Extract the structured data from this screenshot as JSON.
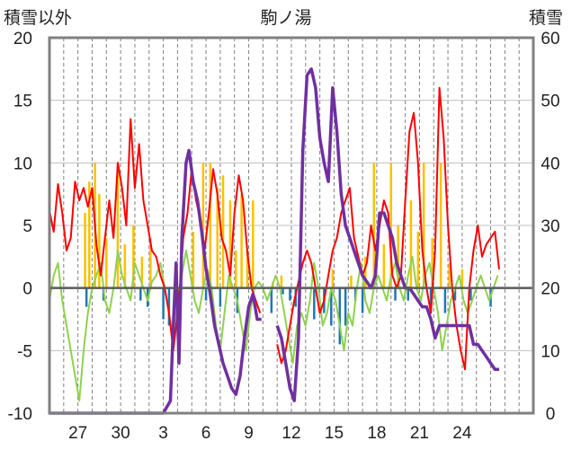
{
  "chart_data": {
    "type": "line",
    "title": "駒ノ湯",
    "ylabel_left": "積雪以外",
    "ylabel_right": "積雪",
    "ylim_left": [
      -10,
      20
    ],
    "ylim_right": [
      0,
      60
    ],
    "yticks_left": [
      "-10",
      "-5",
      "0",
      "5",
      "10",
      "15",
      "20"
    ],
    "yticks_right": [
      "0",
      "10",
      "20",
      "30",
      "40",
      "50",
      "60"
    ],
    "xlim": [
      25,
      59
    ],
    "xticks": [
      {
        "pos": 27,
        "label": "27"
      },
      {
        "pos": 30,
        "label": "30"
      },
      {
        "pos": 33,
        "label": "3"
      },
      {
        "pos": 36,
        "label": "6"
      },
      {
        "pos": 39,
        "label": "9"
      },
      {
        "pos": 42,
        "label": "12"
      },
      {
        "pos": 45,
        "label": "15"
      },
      {
        "pos": 48,
        "label": "18"
      },
      {
        "pos": 51,
        "label": "21"
      },
      {
        "pos": 54,
        "label": "24"
      }
    ],
    "grid": true,
    "colors": {
      "max_temp": "#ff0000",
      "min_temp": "#8fd14f",
      "snowfall_bar": "#ffc000",
      "negative_bar": "#1f77b4",
      "snow_depth": "#7030a0"
    },
    "series": [
      {
        "key": "max_temp",
        "axis": "left",
        "x": [
          25.0,
          25.3,
          25.6,
          25.9,
          26.2,
          26.5,
          26.8,
          27.1,
          27.4,
          27.7,
          28.0,
          28.3,
          28.6,
          28.9,
          29.2,
          29.5,
          29.8,
          30.1,
          30.4,
          30.7,
          31.0,
          31.3,
          31.6,
          31.9,
          32.2,
          32.5,
          32.8,
          33.1,
          33.4,
          33.7,
          34.0,
          34.2,
          34.4,
          34.7,
          35.0,
          35.3,
          35.6,
          35.9,
          36.2,
          36.5,
          36.8,
          37.1,
          37.4,
          37.7,
          38.0,
          38.3,
          38.6,
          38.9,
          39.2,
          39.5,
          39.8
        ],
        "values": [
          6.2,
          4.5,
          8.3,
          6.0,
          3.0,
          4.0,
          8.5,
          7.0,
          8.0,
          6.5,
          8.0,
          3.5,
          1.0,
          4.0,
          7.0,
          4.0,
          10.0,
          8.0,
          5.0,
          13.5,
          8.0,
          11.5,
          7.0,
          5.0,
          3.0,
          2.5,
          1.0,
          0.0,
          -2.0,
          -5.0,
          -2.0,
          0.5,
          4.0,
          6.0,
          9.5,
          7.0,
          5.5,
          3.0,
          6.0,
          9.5,
          7.5,
          4.0,
          3.0,
          1.0,
          6.0,
          9.0,
          7.0,
          3.0,
          0.0,
          -1.0,
          -2.0
        ]
      },
      {
        "key": "max_temp",
        "axis": "left",
        "x": [
          41.0,
          41.3,
          41.6,
          41.9,
          42.2,
          42.5,
          42.8,
          43.1,
          43.4,
          43.7,
          44.0,
          44.3,
          44.6,
          44.9,
          45.2,
          45.5,
          45.8,
          46.1,
          46.4,
          46.7,
          47.0,
          47.3,
          47.6,
          47.9,
          48.2,
          48.5,
          48.8,
          49.1,
          49.4,
          49.7,
          50.0,
          50.3,
          50.6,
          50.9,
          51.2,
          51.5,
          51.8,
          52.1,
          52.4,
          52.7,
          53.0,
          53.3,
          53.6,
          53.9,
          54.2,
          54.5,
          54.8,
          55.1,
          55.4,
          55.7,
          56.0,
          56.3,
          56.6
        ],
        "values": [
          -4.5,
          -6.0,
          -5.0,
          -3.0,
          -1.0,
          0.5,
          2.0,
          3.0,
          2.0,
          0.0,
          -2.0,
          -1.0,
          1.0,
          3.0,
          4.0,
          6.0,
          7.0,
          8.0,
          4.0,
          2.5,
          1.0,
          2.0,
          5.0,
          3.0,
          5.0,
          7.0,
          6.0,
          1.0,
          0.0,
          1.0,
          7.0,
          12.5,
          14.0,
          10.0,
          3.0,
          0.0,
          -2.0,
          3.0,
          16.0,
          12.0,
          5.0,
          0.0,
          -3.0,
          -5.0,
          -6.5,
          0.0,
          3.0,
          5.0,
          2.5,
          3.5,
          4.0,
          4.5,
          1.5
        ]
      },
      {
        "key": "min_temp",
        "axis": "left",
        "x": [
          25.0,
          25.3,
          25.6,
          25.9,
          26.2,
          26.5,
          26.8,
          27.1,
          27.4,
          27.7,
          28.0,
          28.3,
          28.6,
          28.9,
          29.2,
          29.5,
          29.8,
          30.1,
          30.4,
          30.7,
          31.0,
          31.3,
          31.6,
          31.9,
          32.2,
          32.5,
          32.8,
          33.1,
          33.4,
          33.7,
          34.0,
          34.3,
          34.6,
          34.9,
          35.2,
          35.5,
          35.8,
          36.1,
          36.4,
          36.7,
          37.0,
          37.3,
          37.6,
          37.9,
          38.2,
          38.5,
          38.8,
          39.1,
          39.4,
          39.7,
          40.0,
          40.3,
          40.6,
          40.9,
          41.2,
          41.5,
          41.8,
          42.1,
          42.4,
          42.7,
          43.0,
          43.3,
          43.6,
          43.9,
          44.2,
          44.5,
          44.8,
          45.1,
          45.4,
          45.7,
          46.0,
          46.3,
          46.6,
          46.9,
          47.2,
          47.5,
          47.8,
          48.1,
          48.4,
          48.7,
          49.0,
          49.3,
          49.6,
          49.9,
          50.2,
          50.5,
          50.8,
          51.1,
          51.4,
          51.7,
          52.0,
          52.3,
          52.6,
          52.9,
          53.2,
          53.5,
          53.8,
          54.1,
          54.4,
          54.7,
          55.0,
          55.3,
          55.6,
          55.9,
          56.2,
          56.5
        ],
        "values": [
          -1.0,
          1.0,
          2.0,
          -1.0,
          -3.0,
          -5.0,
          -7.0,
          -9.0,
          -5.0,
          -2.0,
          0.0,
          1.0,
          2.0,
          -1.0,
          -2.0,
          0.0,
          3.0,
          1.0,
          0.0,
          -1.0,
          2.0,
          1.0,
          0.0,
          -1.0,
          0.5,
          1.0,
          2.0,
          0.0,
          -2.0,
          -4.0,
          -1.0,
          1.0,
          3.0,
          1.0,
          -1.0,
          -2.0,
          0.0,
          1.5,
          0.0,
          -3.0,
          -5.0,
          -2.0,
          1.0,
          0.0,
          -1.0,
          -3.0,
          -5.0,
          -2.0,
          0.0,
          0.5,
          0.0,
          -1.0,
          0.0,
          1.0,
          0.0,
          -2.0,
          -4.0,
          -6.0,
          -3.0,
          -2.0,
          -3.0,
          -1.0,
          2.0,
          0.0,
          -3.0,
          -2.0,
          0.0,
          -1.0,
          -3.0,
          -5.0,
          -2.0,
          -3.0,
          0.0,
          2.0,
          -1.0,
          -2.0,
          0.0,
          1.0,
          0.0,
          -1.0,
          1.0,
          2.0,
          0.0,
          -1.0,
          1.0,
          2.5,
          0.0,
          -1.0,
          1.0,
          2.0,
          0.0,
          -2.0,
          -5.0,
          -3.0,
          -1.0,
          0.0,
          1.0,
          -1.0,
          -2.0,
          -1.0,
          0.0,
          1.0,
          0.0,
          -1.0,
          0.0,
          1.0
        ]
      },
      {
        "key": "snow_depth",
        "axis": "right",
        "x": [
          25.0,
          33.0,
          33.5,
          33.7,
          33.9,
          34.1,
          34.3,
          34.6,
          34.8,
          35.1,
          35.4,
          35.7,
          36.0,
          36.3,
          36.6,
          36.9,
          37.2,
          37.5,
          37.8,
          38.1,
          38.4,
          38.7,
          39.0,
          39.3,
          39.6,
          39.9
        ],
        "values": [
          0,
          0,
          2,
          14,
          24,
          8,
          28,
          40,
          42,
          37,
          34,
          29,
          23,
          19,
          14,
          11,
          8,
          6,
          4,
          3,
          6,
          12,
          17,
          19,
          15,
          15
        ]
      },
      {
        "key": "snow_depth",
        "axis": "right",
        "x": [
          41.0,
          41.3,
          41.6,
          41.9,
          42.2,
          42.5,
          42.8,
          43.1,
          43.4,
          43.7,
          44.0,
          44.3,
          44.6,
          44.9,
          45.2,
          45.5,
          45.8,
          46.1,
          46.4,
          46.7,
          47.0,
          47.3,
          47.6,
          47.9,
          48.2,
          48.5,
          48.8,
          49.1,
          49.4,
          49.7,
          50.0,
          50.3,
          50.6,
          50.9,
          51.2,
          51.5,
          51.8,
          52.1,
          52.4,
          52.7,
          53.0,
          53.3,
          53.6,
          53.9,
          54.2,
          54.5,
          54.8,
          55.1,
          55.4,
          55.7,
          56.0,
          56.3,
          56.6
        ],
        "values": [
          14,
          12,
          8,
          4,
          2,
          12,
          42,
          54,
          55,
          52,
          44,
          40,
          37,
          52,
          45,
          35,
          30,
          28,
          26,
          24,
          22,
          21,
          20,
          22,
          32,
          32,
          30,
          28,
          24,
          22,
          20,
          20,
          19,
          18,
          17,
          17,
          15,
          12,
          14,
          14,
          14,
          14,
          14,
          14,
          14,
          14,
          11,
          11,
          10,
          9,
          8,
          7,
          7
        ]
      }
    ],
    "bars": {
      "snowfall": [
        {
          "x": 27.5,
          "value": 6.0
        },
        {
          "x": 27.8,
          "value": 8.5
        },
        {
          "x": 28.2,
          "value": 10.0
        },
        {
          "x": 28.5,
          "value": 7.5
        },
        {
          "x": 29.0,
          "value": 4.0
        },
        {
          "x": 29.8,
          "value": 10.0
        },
        {
          "x": 30.3,
          "value": 3.5
        },
        {
          "x": 30.9,
          "value": 5.0
        },
        {
          "x": 31.5,
          "value": 2.5
        },
        {
          "x": 32.1,
          "value": 4.0
        },
        {
          "x": 35.1,
          "value": 4.5
        },
        {
          "x": 35.8,
          "value": 10.0
        },
        {
          "x": 36.3,
          "value": 10.0
        },
        {
          "x": 36.8,
          "value": 8.0
        },
        {
          "x": 37.2,
          "value": 9.0
        },
        {
          "x": 37.7,
          "value": 7.0
        },
        {
          "x": 38.1,
          "value": 3.0
        },
        {
          "x": 38.5,
          "value": 7.5
        },
        {
          "x": 38.9,
          "value": 3.0
        },
        {
          "x": 39.3,
          "value": 7.0
        },
        {
          "x": 40.7,
          "value": 0.5
        },
        {
          "x": 41.3,
          "value": 1.0
        },
        {
          "x": 44.9,
          "value": 1.5
        },
        {
          "x": 46.2,
          "value": 1.0
        },
        {
          "x": 47.2,
          "value": 2.5
        },
        {
          "x": 47.8,
          "value": 10.0
        },
        {
          "x": 48.5,
          "value": 3.5
        },
        {
          "x": 49.0,
          "value": 10.0
        },
        {
          "x": 49.5,
          "value": 5.0
        },
        {
          "x": 50.4,
          "value": 7.0
        },
        {
          "x": 50.9,
          "value": 4.5
        },
        {
          "x": 51.3,
          "value": 10.0
        },
        {
          "x": 51.9,
          "value": 4.0
        },
        {
          "x": 52.5,
          "value": 10.0
        },
        {
          "x": 53.1,
          "value": 2.0
        },
        {
          "x": 54.0,
          "value": 1.5
        }
      ],
      "negative": [
        {
          "x": 27.6,
          "value": -1.5
        },
        {
          "x": 28.8,
          "value": -1.0
        },
        {
          "x": 31.4,
          "value": -1.0
        },
        {
          "x": 31.9,
          "value": -1.5
        },
        {
          "x": 33.0,
          "value": -2.5
        },
        {
          "x": 33.4,
          "value": -3.0
        },
        {
          "x": 33.8,
          "value": -1.0
        },
        {
          "x": 36.0,
          "value": -1.0
        },
        {
          "x": 37.0,
          "value": -1.5
        },
        {
          "x": 38.2,
          "value": -2.0
        },
        {
          "x": 40.6,
          "value": -2.0
        },
        {
          "x": 41.4,
          "value": -0.5
        },
        {
          "x": 41.9,
          "value": -1.0
        },
        {
          "x": 42.3,
          "value": -1.5
        },
        {
          "x": 43.6,
          "value": -2.5
        },
        {
          "x": 44.3,
          "value": -2.0
        },
        {
          "x": 44.8,
          "value": -3.0
        },
        {
          "x": 45.4,
          "value": -4.5
        },
        {
          "x": 45.8,
          "value": -3.0
        },
        {
          "x": 46.5,
          "value": -1.0
        },
        {
          "x": 47.0,
          "value": -2.0
        },
        {
          "x": 49.3,
          "value": -1.0
        },
        {
          "x": 50.2,
          "value": -1.0
        },
        {
          "x": 51.8,
          "value": -1.5
        },
        {
          "x": 52.8,
          "value": -2.0
        },
        {
          "x": 53.5,
          "value": -1.0
        },
        {
          "x": 54.6,
          "value": -1.0
        },
        {
          "x": 56.0,
          "value": -1.5
        }
      ]
    }
  }
}
